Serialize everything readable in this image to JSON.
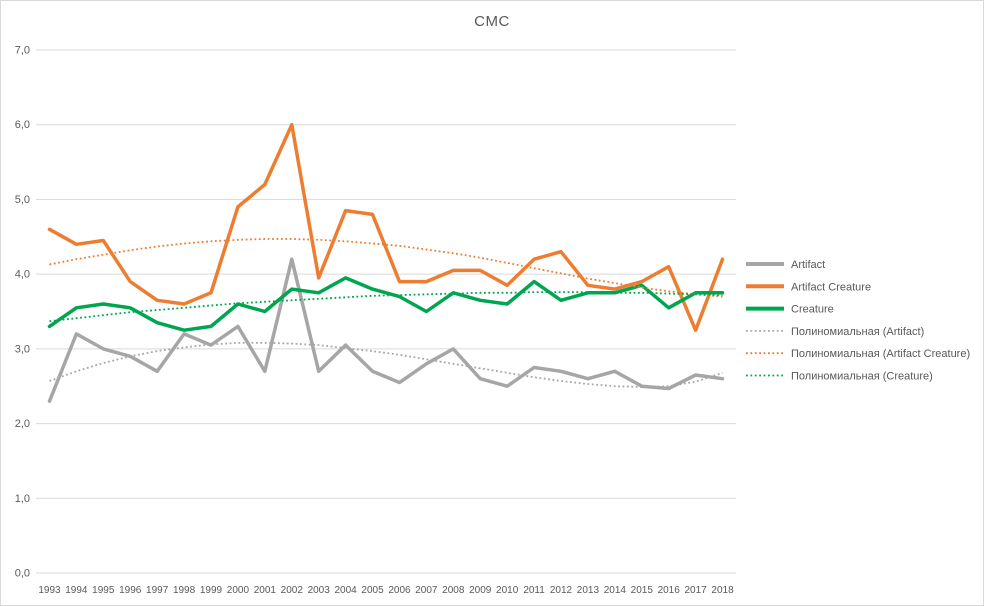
{
  "window": {
    "background": "#FFFFFF",
    "border_color": "#D9D9D9"
  },
  "text_color": "#595959",
  "gridline_color": "#D9D9D9",
  "chart_data": {
    "type": "line",
    "title": "CMC",
    "xlabel": "",
    "ylabel": "",
    "grid": true,
    "legend_position": "right",
    "x_categories": [
      "1993",
      "1994",
      "1995",
      "1996",
      "1997",
      "1998",
      "1999",
      "2000",
      "2001",
      "2002",
      "2003",
      "2004",
      "2005",
      "2006",
      "2007",
      "2008",
      "2009",
      "2010",
      "2011",
      "2012",
      "2013",
      "2014",
      "2015",
      "2016",
      "2017",
      "2018"
    ],
    "y_axis": {
      "min": 0,
      "max": 7,
      "tick_step": 1,
      "decimal_separator": ",",
      "tick_labels": [
        "0,0",
        "1,0",
        "2,0",
        "3,0",
        "4,0",
        "5,0",
        "6,0",
        "7,0"
      ]
    },
    "series": [
      {
        "id": "artifact",
        "name": "Artifact",
        "color": "#A6A6A6",
        "line_style": "solid",
        "role": "data",
        "values": [
          2.3,
          3.2,
          3.0,
          2.9,
          2.7,
          3.2,
          3.05,
          3.3,
          2.7,
          4.2,
          2.7,
          3.05,
          2.7,
          2.55,
          2.8,
          3.0,
          2.6,
          2.5,
          2.75,
          2.7,
          2.6,
          2.7,
          2.5,
          2.47,
          2.65,
          2.6
        ]
      },
      {
        "id": "artifact-creature",
        "name": "Artifact Creature",
        "color": "#ED7D31",
        "line_style": "solid",
        "role": "data",
        "values": [
          4.6,
          4.4,
          4.45,
          3.9,
          3.65,
          3.6,
          3.75,
          4.9,
          5.2,
          6.0,
          3.95,
          4.85,
          4.8,
          3.9,
          3.9,
          4.05,
          4.05,
          3.85,
          4.2,
          4.3,
          3.85,
          3.8,
          3.9,
          4.1,
          3.25,
          4.2
        ]
      },
      {
        "id": "creature",
        "name": "Creature",
        "color": "#00A550",
        "line_style": "solid",
        "role": "data",
        "values": [
          3.3,
          3.55,
          3.6,
          3.55,
          3.35,
          3.25,
          3.3,
          3.6,
          3.5,
          3.8,
          3.75,
          3.95,
          3.8,
          3.7,
          3.5,
          3.75,
          3.65,
          3.6,
          3.9,
          3.65,
          3.75,
          3.75,
          3.85,
          3.55,
          3.75,
          3.75
        ]
      },
      {
        "id": "trend-artifact",
        "name": "Полиномиальная (Artifact)",
        "color": "#A6A6A6",
        "line_style": "dotted",
        "role": "trendline",
        "values": [
          2.57,
          2.7,
          2.81,
          2.9,
          2.97,
          3.02,
          3.06,
          3.08,
          3.08,
          3.07,
          3.05,
          3.01,
          2.97,
          2.92,
          2.86,
          2.8,
          2.74,
          2.68,
          2.62,
          2.57,
          2.53,
          2.5,
          2.49,
          2.5,
          2.56,
          2.68
        ]
      },
      {
        "id": "trend-artifact-creature",
        "name": "Полиномиальная (Artifact Creature)",
        "color": "#ED7D31",
        "line_style": "dotted",
        "role": "trendline",
        "values": [
          4.13,
          4.2,
          4.26,
          4.32,
          4.37,
          4.41,
          4.44,
          4.46,
          4.47,
          4.47,
          4.46,
          4.44,
          4.41,
          4.38,
          4.33,
          4.28,
          4.22,
          4.15,
          4.08,
          4.01,
          3.94,
          3.88,
          3.82,
          3.77,
          3.73,
          3.7
        ]
      },
      {
        "id": "trend-creature",
        "name": "Полиномиальная (Creature)",
        "color": "#00A550",
        "line_style": "dotted",
        "role": "trendline",
        "values": [
          3.37,
          3.41,
          3.45,
          3.49,
          3.52,
          3.55,
          3.58,
          3.61,
          3.63,
          3.65,
          3.67,
          3.69,
          3.71,
          3.72,
          3.73,
          3.74,
          3.75,
          3.75,
          3.76,
          3.76,
          3.76,
          3.75,
          3.75,
          3.74,
          3.73,
          3.72
        ]
      }
    ]
  }
}
